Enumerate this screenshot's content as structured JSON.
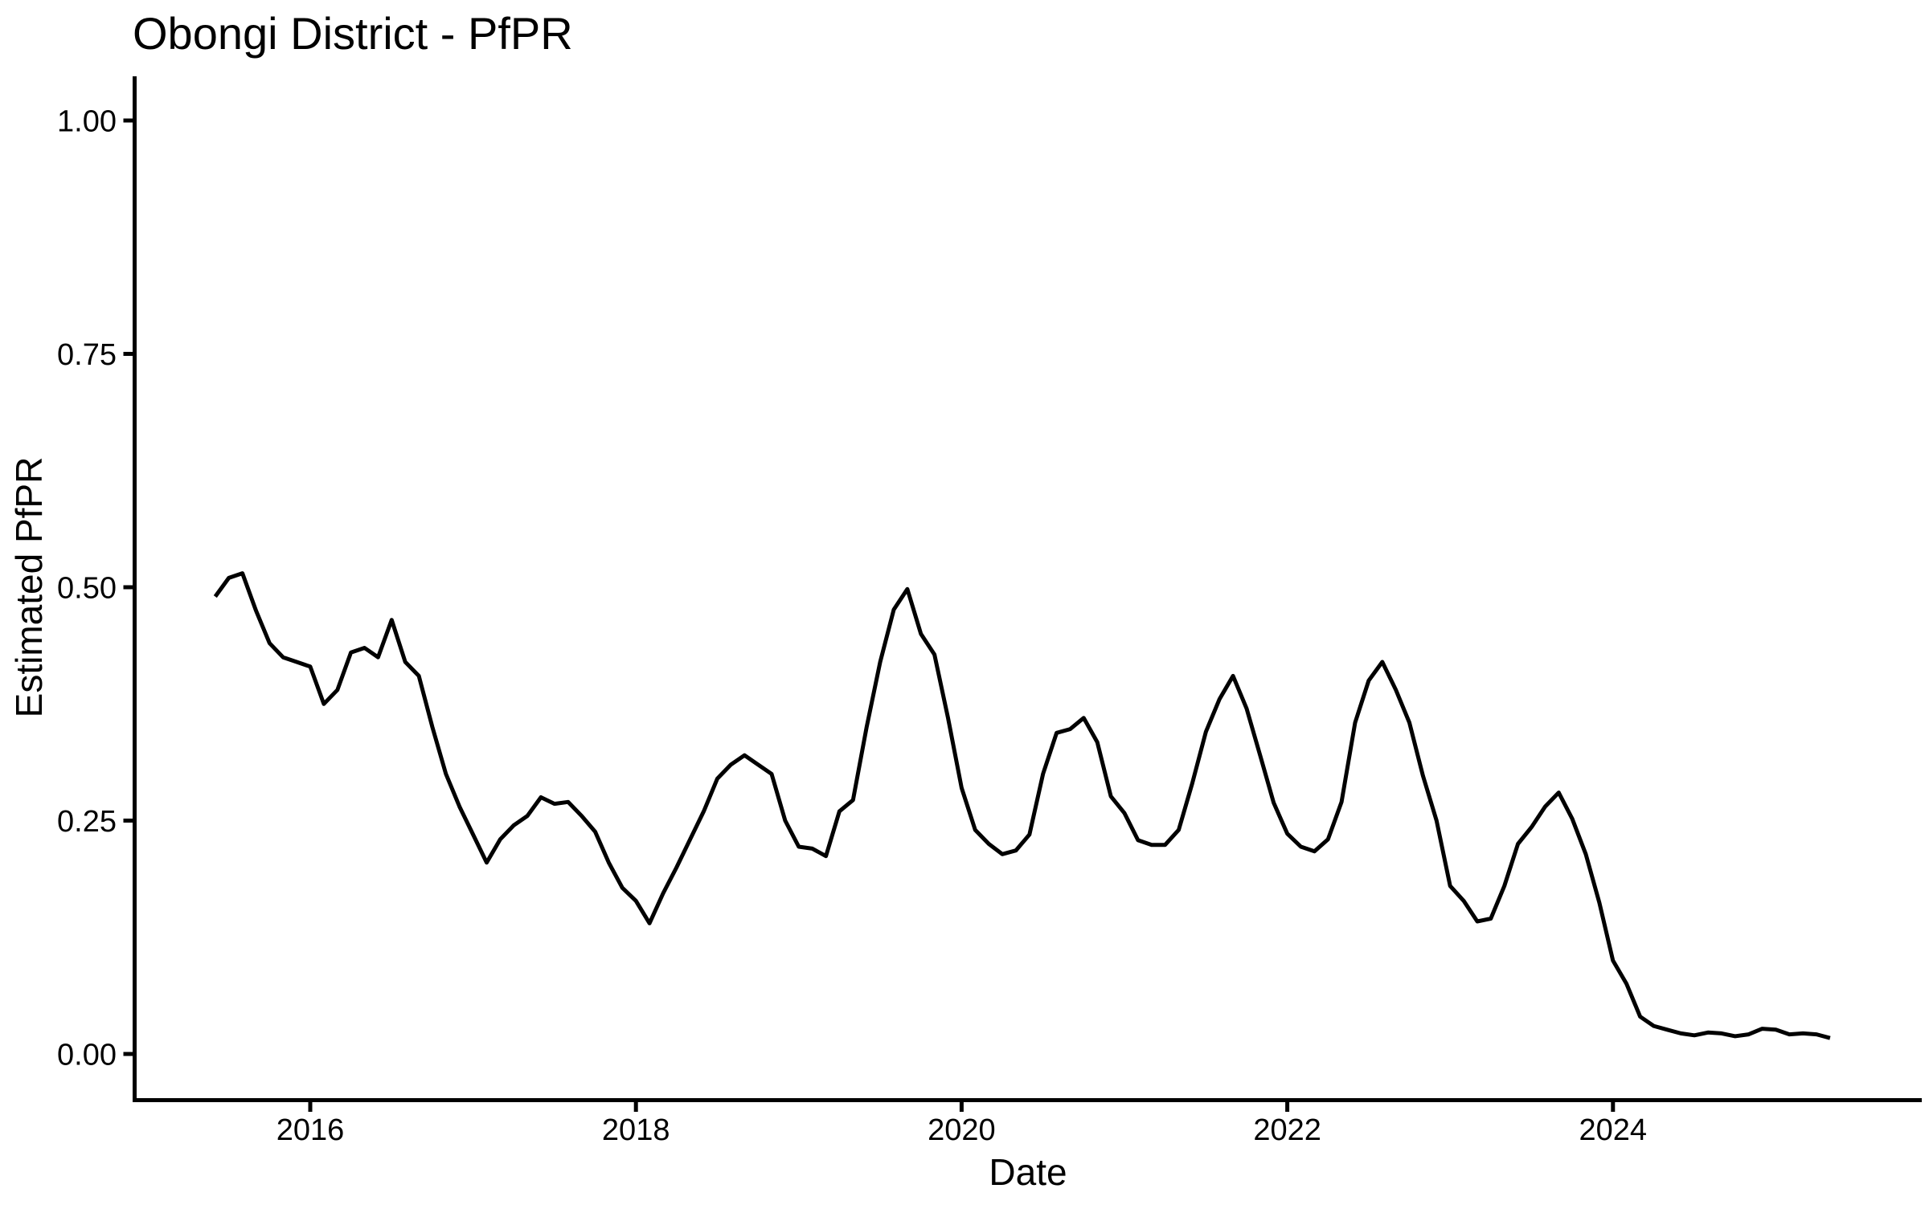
{
  "page": {
    "background_color": "#FFFFFF",
    "line_color": "#000000"
  },
  "chart_data": {
    "type": "line",
    "title": "Obongi District - PfPR",
    "xlabel": "Date",
    "ylabel": "Estimated PfPR",
    "legend": "none",
    "grid": "off",
    "ylim": [
      -0.05,
      1.05
    ],
    "xlim_years": [
      2014.92,
      2025.92
    ],
    "y_ticks": [
      {
        "value": 0.0,
        "label": "0.00"
      },
      {
        "value": 0.25,
        "label": "0.25"
      },
      {
        "value": 0.5,
        "label": "0.50"
      },
      {
        "value": 0.75,
        "label": "0.75"
      },
      {
        "value": 1.0,
        "label": "1.00"
      }
    ],
    "x_ticks": [
      {
        "value": 2016,
        "label": "2016"
      },
      {
        "value": 2018,
        "label": "2018"
      },
      {
        "value": 2020,
        "label": "2020"
      },
      {
        "value": 2022,
        "label": "2022"
      },
      {
        "value": 2024,
        "label": "2024"
      }
    ],
    "series": [
      {
        "name": "Estimated PfPR",
        "color": "#000000",
        "x": [
          "2015-06",
          "2015-07",
          "2015-08",
          "2015-09",
          "2015-10",
          "2015-11",
          "2015-12",
          "2016-01",
          "2016-02",
          "2016-03",
          "2016-04",
          "2016-05",
          "2016-06",
          "2016-07",
          "2016-08",
          "2016-09",
          "2016-10",
          "2016-11",
          "2016-12",
          "2017-01",
          "2017-02",
          "2017-03",
          "2017-04",
          "2017-05",
          "2017-06",
          "2017-07",
          "2017-08",
          "2017-09",
          "2017-10",
          "2017-11",
          "2017-12",
          "2018-01",
          "2018-02",
          "2018-03",
          "2018-04",
          "2018-05",
          "2018-06",
          "2018-07",
          "2018-08",
          "2018-09",
          "2018-10",
          "2018-11",
          "2018-12",
          "2019-01",
          "2019-02",
          "2019-03",
          "2019-04",
          "2019-05",
          "2019-06",
          "2019-07",
          "2019-08",
          "2019-09",
          "2019-10",
          "2019-11",
          "2019-12",
          "2020-01",
          "2020-02",
          "2020-03",
          "2020-04",
          "2020-05",
          "2020-06",
          "2020-07",
          "2020-08",
          "2020-09",
          "2020-10",
          "2020-11",
          "2020-12",
          "2021-01",
          "2021-02",
          "2021-03",
          "2021-04",
          "2021-05",
          "2021-06",
          "2021-07",
          "2021-08",
          "2021-09",
          "2021-10",
          "2021-11",
          "2021-12",
          "2022-01",
          "2022-02",
          "2022-03",
          "2022-04",
          "2022-05",
          "2022-06",
          "2022-07",
          "2022-08",
          "2022-09",
          "2022-10",
          "2022-11",
          "2022-12",
          "2023-01",
          "2023-02",
          "2023-03",
          "2023-04",
          "2023-05",
          "2023-06",
          "2023-07",
          "2023-08",
          "2023-09",
          "2023-10",
          "2023-11",
          "2023-12",
          "2024-01",
          "2024-02",
          "2024-03",
          "2024-04",
          "2024-05",
          "2024-06",
          "2024-07",
          "2024-08",
          "2024-09",
          "2024-10",
          "2024-11",
          "2024-12",
          "2025-01",
          "2025-02",
          "2025-03",
          "2025-04",
          "2025-05"
        ],
        "y": [
          0.49,
          0.51,
          0.515,
          0.475,
          0.44,
          0.425,
          0.42,
          0.415,
          0.375,
          0.39,
          0.43,
          0.435,
          0.425,
          0.465,
          0.42,
          0.405,
          0.35,
          0.3,
          0.265,
          0.235,
          0.205,
          0.23,
          0.245,
          0.255,
          0.275,
          0.268,
          0.27,
          0.255,
          0.238,
          0.205,
          0.178,
          0.164,
          0.14,
          0.172,
          0.2,
          0.23,
          0.26,
          0.295,
          0.31,
          0.32,
          0.31,
          0.3,
          0.25,
          0.222,
          0.22,
          0.212,
          0.26,
          0.272,
          0.35,
          0.42,
          0.476,
          0.498,
          0.45,
          0.428,
          0.36,
          0.285,
          0.24,
          0.225,
          0.214,
          0.218,
          0.235,
          0.3,
          0.344,
          0.348,
          0.36,
          0.334,
          0.276,
          0.258,
          0.229,
          0.224,
          0.224,
          0.24,
          0.29,
          0.345,
          0.38,
          0.405,
          0.37,
          0.32,
          0.269,
          0.236,
          0.222,
          0.217,
          0.23,
          0.27,
          0.355,
          0.4,
          0.42,
          0.39,
          0.355,
          0.298,
          0.25,
          0.18,
          0.164,
          0.142,
          0.145,
          0.18,
          0.225,
          0.243,
          0.265,
          0.28,
          0.252,
          0.214,
          0.162,
          0.1,
          0.075,
          0.04,
          0.03,
          0.026,
          0.022,
          0.02,
          0.023,
          0.022,
          0.019,
          0.021,
          0.027,
          0.026,
          0.021,
          0.022,
          0.021,
          0.017
        ]
      }
    ]
  }
}
